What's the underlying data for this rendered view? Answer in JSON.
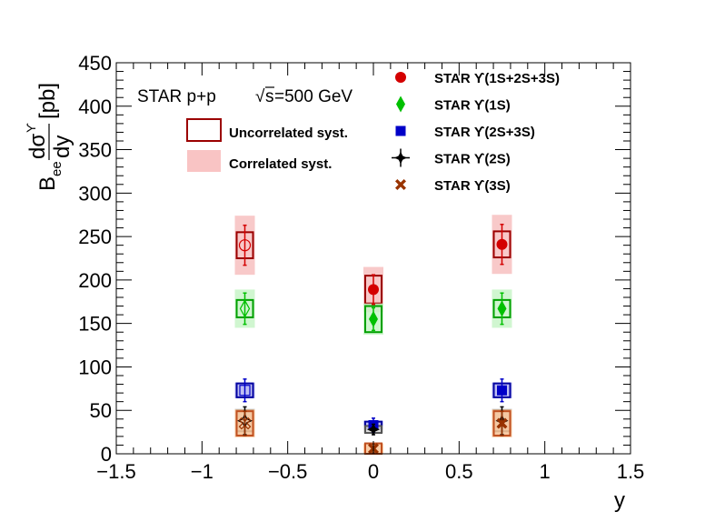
{
  "chart_data": {
    "type": "scatter",
    "xlabel": "y",
    "ylabel": "[pb]",
    "ylabel_symbol_parts": [
      "B",
      "ee",
      "dσ",
      "ϒ",
      "dy"
    ],
    "xlim": [
      -1.5,
      1.5
    ],
    "ylim": [
      0,
      450
    ],
    "x_ticks": [
      "−1.5",
      "−1",
      "−0.5",
      "0",
      "0.5",
      "1",
      "1.5"
    ],
    "y_ticks": [
      "0",
      "50",
      "100",
      "150",
      "200",
      "250",
      "300",
      "350",
      "400",
      "450"
    ],
    "annotation": {
      "prefix": "STAR p+p ",
      "sqrt_symbol": "√",
      "s_label": "s",
      "suffix": "=500 GeV"
    },
    "syst_legend": [
      {
        "label": "Uncorrelated syst.",
        "style": "open-box",
        "color": "#9b0000"
      },
      {
        "label": "Correlated syst.",
        "style": "filled-band",
        "color": "#f9c4c4"
      }
    ],
    "series": [
      {
        "name": "STAR  ϒ(1S+2S+3S)",
        "marker": "circle",
        "color": "#d40000",
        "band_color": "#f7c0c0",
        "box_color": "#9b0000",
        "points": [
          {
            "x": -0.75,
            "y": 240,
            "stat": 23,
            "uncorr": 15,
            "corr": 34,
            "open": true
          },
          {
            "x": 0.0,
            "y": 189,
            "stat": 17,
            "uncorr": 16,
            "corr": 26,
            "open": false
          },
          {
            "x": 0.75,
            "y": 241,
            "stat": 23,
            "uncorr": 15,
            "corr": 34,
            "open": false
          }
        ]
      },
      {
        "name": "STAR  ϒ(1S)",
        "marker": "diamond",
        "color": "#00c000",
        "band_color": "#c8f5c8",
        "box_color": "#00a000",
        "points": [
          {
            "x": -0.75,
            "y": 167,
            "stat": 18,
            "uncorr": 10,
            "corr": 22,
            "open": true
          },
          {
            "x": 0.0,
            "y": 155,
            "stat": 13,
            "uncorr": 15,
            "corr": 18,
            "open": false
          },
          {
            "x": 0.75,
            "y": 167,
            "stat": 18,
            "uncorr": 10,
            "corr": 22,
            "open": false
          }
        ]
      },
      {
        "name": "STAR  ϒ(2S+3S)",
        "marker": "square",
        "color": "#0000c8",
        "band_color": "#b4b4f0",
        "box_color": "#0000a0",
        "points": [
          {
            "x": -0.75,
            "y": 73,
            "stat": 13,
            "uncorr": 8,
            "corr": 9,
            "open": true
          },
          {
            "x": 0.0,
            "y": 33,
            "stat": 8,
            "uncorr": 4,
            "corr": 5,
            "open": false
          },
          {
            "x": 0.75,
            "y": 73,
            "stat": 13,
            "uncorr": 8,
            "corr": 9,
            "open": false
          }
        ]
      },
      {
        "name": "STAR  ϒ(2S)",
        "marker": "star",
        "color": "#000000",
        "band_color": "#d8d8d8",
        "box_color": "#555555",
        "points": [
          {
            "x": -0.75,
            "y": 38,
            "stat": 16,
            "uncorr": 12,
            "corr": 14,
            "open": true
          },
          {
            "x": 0.0,
            "y": 28,
            "stat": 6,
            "uncorr": 4,
            "corr": 4,
            "open": false
          },
          {
            "x": 0.75,
            "y": 38,
            "stat": 16,
            "uncorr": 12,
            "corr": 14,
            "open": false
          }
        ]
      },
      {
        "name": "STAR  ϒ(3S)",
        "marker": "cross",
        "color": "#993300",
        "band_color": "#f8c498",
        "box_color": "#c05020",
        "points": [
          {
            "x": -0.75,
            "y": 35,
            "stat": 14,
            "uncorr": 14,
            "corr": 16,
            "open": true
          },
          {
            "x": 0.0,
            "y": 6,
            "stat": 5,
            "uncorr": 6,
            "corr": 6,
            "open": false
          },
          {
            "x": 0.75,
            "y": 35,
            "stat": 14,
            "uncorr": 14,
            "corr": 16,
            "open": false
          }
        ]
      }
    ],
    "grid": false,
    "legend_placement": "top-right"
  }
}
